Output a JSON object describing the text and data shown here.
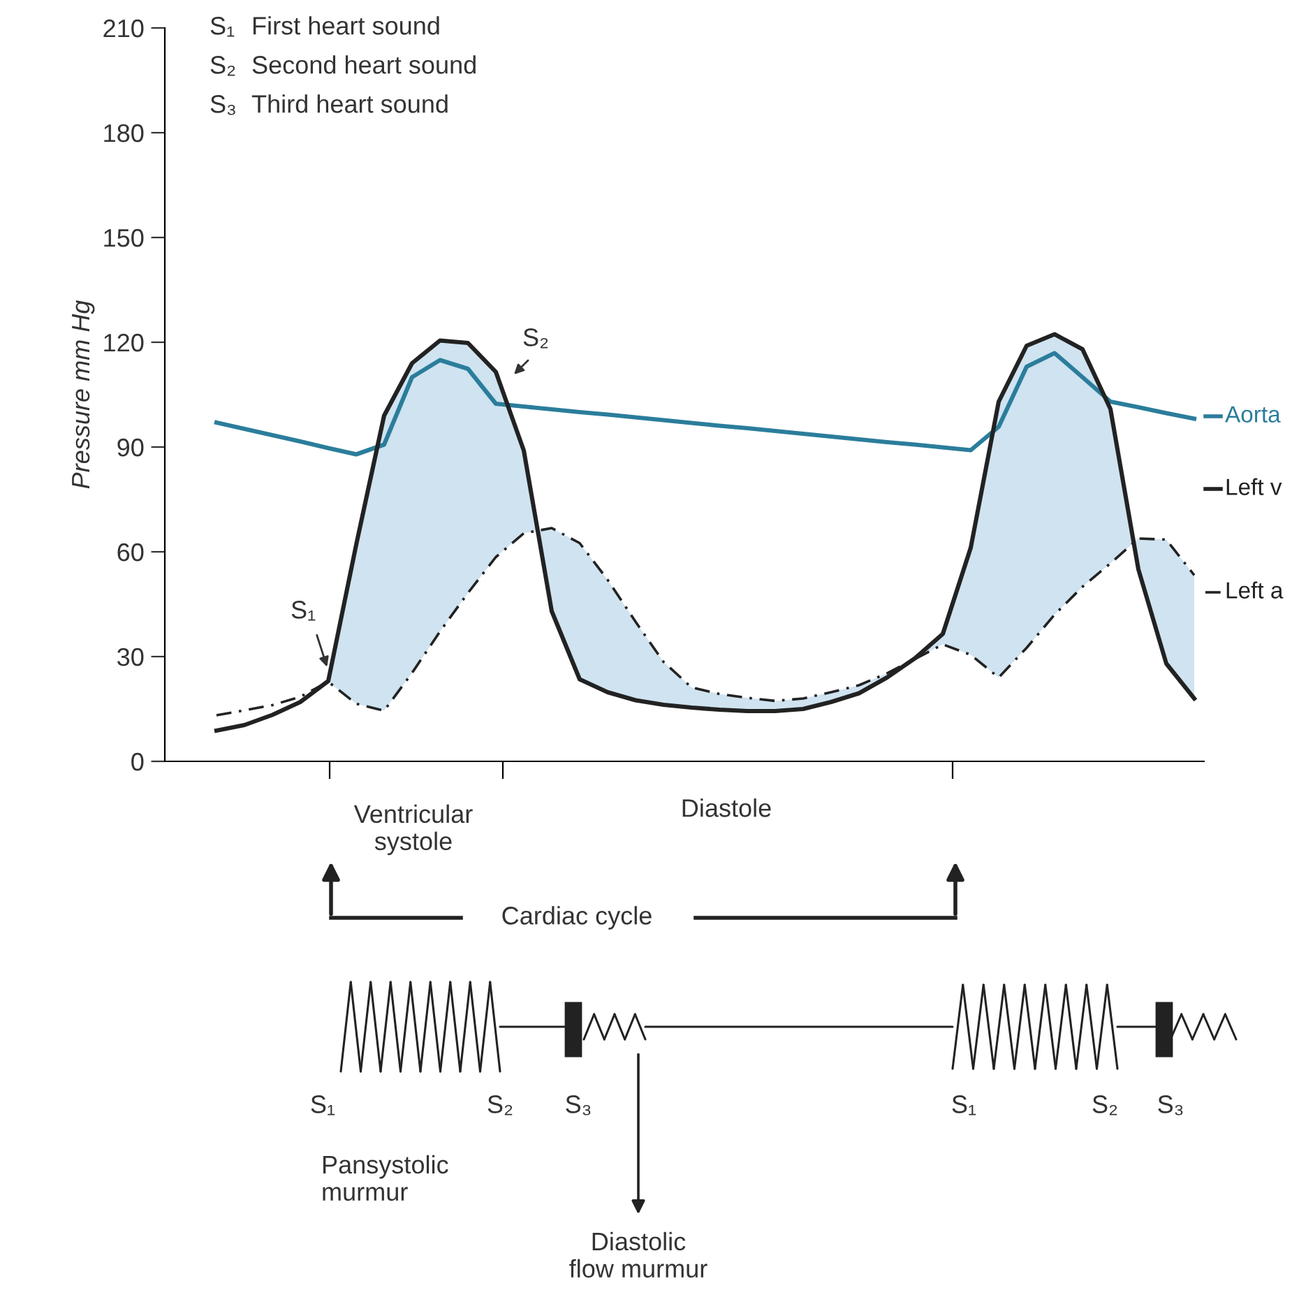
{
  "chart_data": {
    "type": "line",
    "categories": [
      null,
      null,
      null,
      null,
      null,
      null,
      null,
      null,
      null,
      null,
      null,
      null,
      null,
      null,
      null,
      null,
      null,
      null,
      null,
      null,
      null,
      null,
      null,
      null,
      null,
      null,
      null,
      null,
      null,
      null,
      null,
      null,
      null,
      null,
      null,
      null
    ],
    "series": [
      {
        "name": "Aorta",
        "color": "#2b7d9b",
        "line_style": "solid",
        "values": [
          97,
          95.2,
          93.4,
          91.6,
          89.7,
          87.9,
          90.7,
          110,
          114.9,
          112.4,
          102.4,
          101.6,
          100.8,
          100,
          99.3,
          98.5,
          97.7,
          96.9,
          96.1,
          95.4,
          94.6,
          93.8,
          93,
          92.2,
          91.4,
          90.7,
          89.9,
          89.1,
          95.8,
          113,
          116.9,
          110,
          103,
          101.4,
          99.7,
          98.1
        ]
      },
      {
        "name": "Left v",
        "color": "#222222",
        "line_style": "solid",
        "values": [
          8.8,
          10.4,
          13.3,
          17,
          23,
          62,
          99,
          114,
          120.5,
          119.8,
          111.5,
          89,
          43,
          23.5,
          19.8,
          17.5,
          16.2,
          15.4,
          14.8,
          14.4,
          14.4,
          15,
          17,
          19.5,
          24,
          29.5,
          36.5,
          61.2,
          103,
          119,
          122.3,
          118,
          100.9,
          55,
          28,
          18
        ]
      },
      {
        "name": "Left a",
        "color": "#222222",
        "line_style": "dashed",
        "values": [
          13.2,
          14.6,
          16.1,
          18.5,
          22.8,
          16.5,
          14.5,
          25.3,
          37.2,
          48.2,
          58.5,
          65.3,
          66.8,
          62.5,
          52,
          40,
          28.5,
          21.2,
          19.3,
          18.2,
          17.3,
          18,
          19.8,
          21.8,
          25.2,
          29.3,
          33.5,
          30.5,
          24,
          32.5,
          42,
          50,
          56.7,
          63.8,
          63.5,
          53.3
        ]
      }
    ],
    "ylabel": "Pressure mm Hg",
    "ylim": [
      0,
      210
    ],
    "yticks": [
      0,
      30,
      60,
      90,
      120,
      150,
      180,
      210
    ],
    "tick_labels": "y",
    "legend": "right",
    "grid": false,
    "marker": "none",
    "annotations": [
      "S₁ First heart sound",
      "S₂ Second heart sound",
      "S₃ Third heart sound",
      "S₁",
      "S₂",
      "Ventricular systole",
      "Diastole",
      "Cardiac cycle",
      "S₁",
      "S₂",
      "S₃",
      "S₁",
      "S₂",
      "S₃",
      "Pansystolic murmur",
      "Diastolic flow murmur"
    ]
  }
}
